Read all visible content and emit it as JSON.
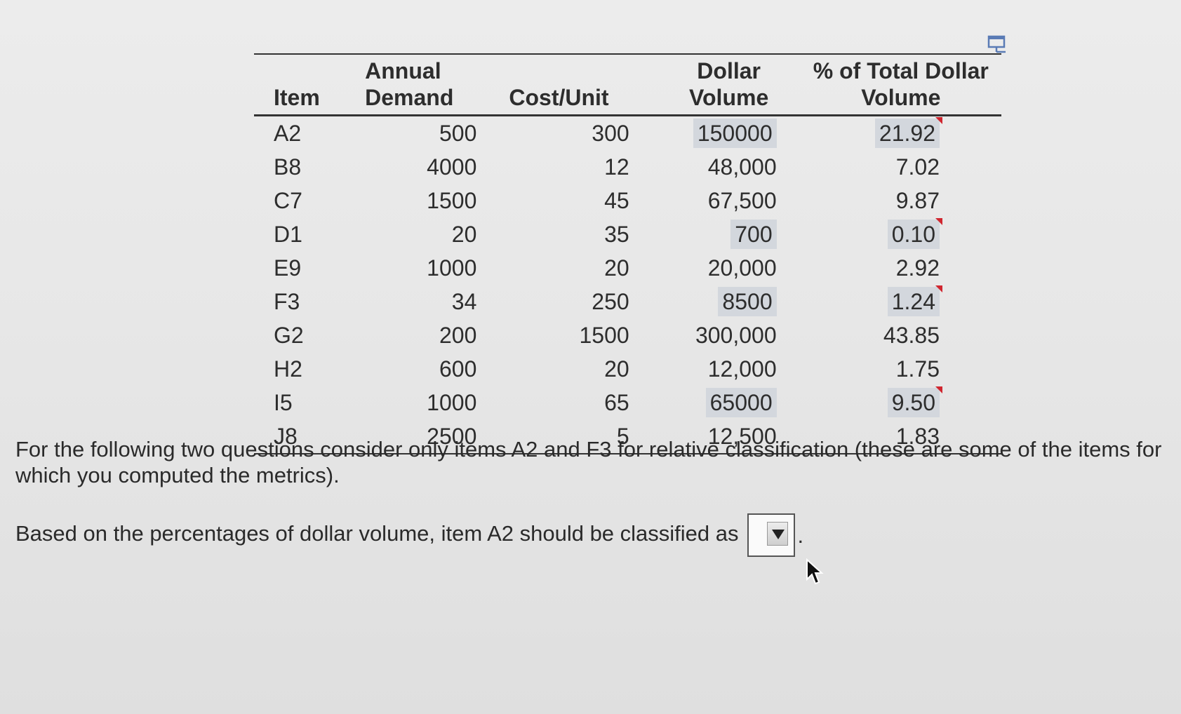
{
  "table": {
    "headers": {
      "item": "Item",
      "annual_demand": "Annual Demand",
      "cost_unit": "Cost/Unit",
      "dollar_volume_line1": "Dollar",
      "dollar_volume_line2": "Volume",
      "pct_line1": "% of Total Dollar",
      "pct_line2": "Volume"
    },
    "rows": [
      {
        "item": "A2",
        "demand": "500",
        "cost": "300",
        "volume": "150000",
        "pct": "21.92"
      },
      {
        "item": "B8",
        "demand": "4000",
        "cost": "12",
        "volume": "48,000",
        "pct": "7.02"
      },
      {
        "item": "C7",
        "demand": "1500",
        "cost": "45",
        "volume": "67,500",
        "pct": "9.87"
      },
      {
        "item": "D1",
        "demand": "20",
        "cost": "35",
        "volume": "700",
        "pct": "0.10"
      },
      {
        "item": "E9",
        "demand": "1000",
        "cost": "20",
        "volume": "20,000",
        "pct": "2.92"
      },
      {
        "item": "F3",
        "demand": "34",
        "cost": "250",
        "volume": "8500",
        "pct": "1.24"
      },
      {
        "item": "G2",
        "demand": "200",
        "cost": "1500",
        "volume": "300,000",
        "pct": "43.85"
      },
      {
        "item": "H2",
        "demand": "600",
        "cost": "20",
        "volume": "12,000",
        "pct": "1.75"
      },
      {
        "item": "I5",
        "demand": "1000",
        "cost": "65",
        "volume": "65000",
        "pct": "9.50"
      },
      {
        "item": "J8",
        "demand": "2500",
        "cost": "5",
        "volume": "12,500",
        "pct": "1.83"
      }
    ]
  },
  "question_intro": "For the following two questions consider only items A2 and F3 for relative classification (these are some of the items for which you computed the metrics).",
  "question_a2": "Based on the percentages of dollar volume, item A2 should be classified as",
  "answer_select": {
    "selected": ""
  },
  "colors": {
    "highlight": "#d3d7dd",
    "flag": "#d0262f"
  }
}
